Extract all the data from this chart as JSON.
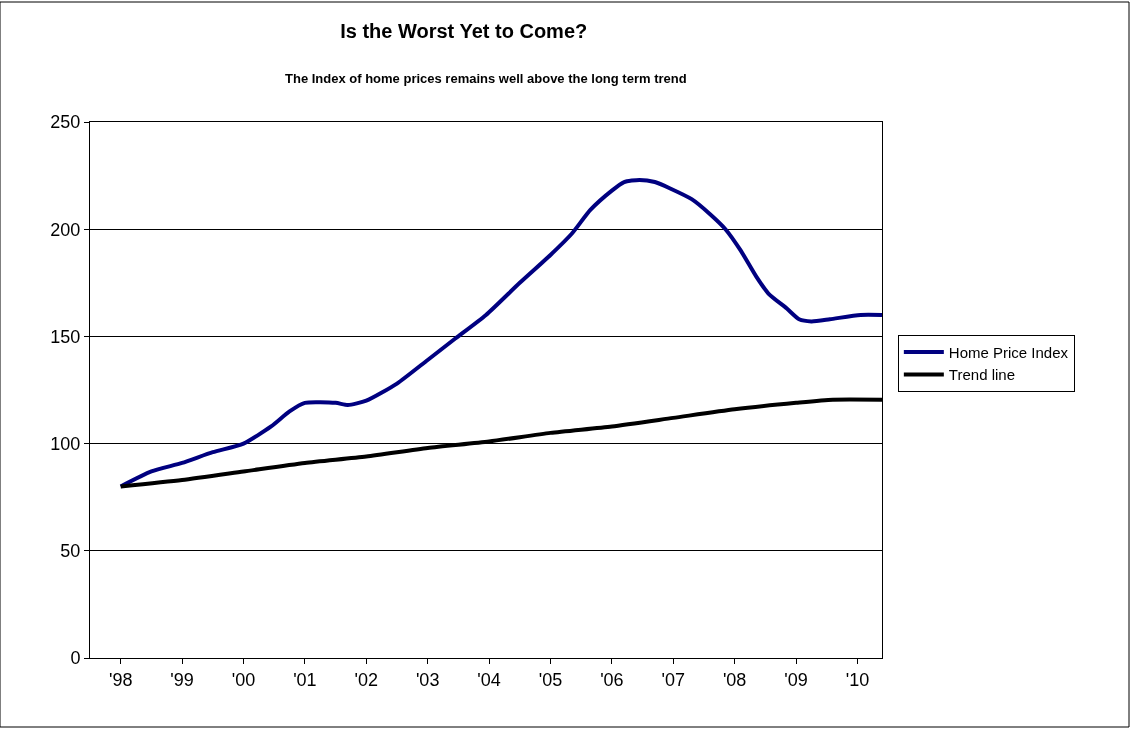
{
  "chart_data": {
    "type": "line",
    "title": "Is the Worst Yet to Come?",
    "subtitle": "The Index of home prices remains well above the long term trend",
    "xlim": [
      1997.5,
      2010.4
    ],
    "xticks": [
      {
        "value": 1998,
        "label": "'98"
      },
      {
        "value": 1999,
        "label": "'99"
      },
      {
        "value": 2000,
        "label": "'00"
      },
      {
        "value": 2001,
        "label": "'01"
      },
      {
        "value": 2002,
        "label": "'02"
      },
      {
        "value": 2003,
        "label": "'03"
      },
      {
        "value": 2004,
        "label": "'04"
      },
      {
        "value": 2005,
        "label": "'05"
      },
      {
        "value": 2006,
        "label": "'06"
      },
      {
        "value": 2007,
        "label": "'07"
      },
      {
        "value": 2008,
        "label": "'08"
      },
      {
        "value": 2009,
        "label": "'09"
      },
      {
        "value": 2010,
        "label": "'10"
      }
    ],
    "ylim": [
      0,
      250
    ],
    "yticks": [
      0,
      50,
      100,
      150,
      200,
      250
    ],
    "grid": "y",
    "legend": "right",
    "marker": "none",
    "line_style": "solid",
    "series": [
      {
        "name": "Home Price Index",
        "color": "#000080",
        "x": [
          1998.0,
          1998.5,
          1999.0,
          1999.5,
          2000.0,
          2000.45,
          2000.75,
          2001.0,
          2001.5,
          2001.7,
          2002.0,
          2002.5,
          2003.0,
          2003.45,
          2003.95,
          2004.5,
          2005.0,
          2005.35,
          2005.65,
          2006.0,
          2006.2,
          2006.45,
          2006.7,
          2006.95,
          2007.3,
          2007.6,
          2007.85,
          2008.1,
          2008.35,
          2008.55,
          2008.85,
          2009.05,
          2009.25,
          2009.55,
          2010.05,
          2010.4
        ],
        "values": [
          80,
          87,
          91,
          96,
          100,
          108,
          115,
          119,
          119,
          118,
          120,
          128,
          139,
          149,
          160,
          175,
          188,
          198,
          209,
          218,
          222,
          223,
          222,
          219,
          214,
          207,
          200,
          190,
          178,
          170,
          163,
          158,
          157,
          158,
          160,
          160
        ]
      },
      {
        "name": "Trend line",
        "color": "#000000",
        "x": [
          1998.0,
          1999.0,
          2000.0,
          2001.0,
          2002.0,
          2003.0,
          2004.0,
          2005.0,
          2006.0,
          2007.0,
          2008.0,
          2009.0,
          2009.6,
          2010.4
        ],
        "values": [
          80,
          83,
          87,
          91,
          94,
          98,
          101,
          105,
          108,
          112,
          116,
          119,
          120.5,
          120.5
        ]
      }
    ]
  }
}
